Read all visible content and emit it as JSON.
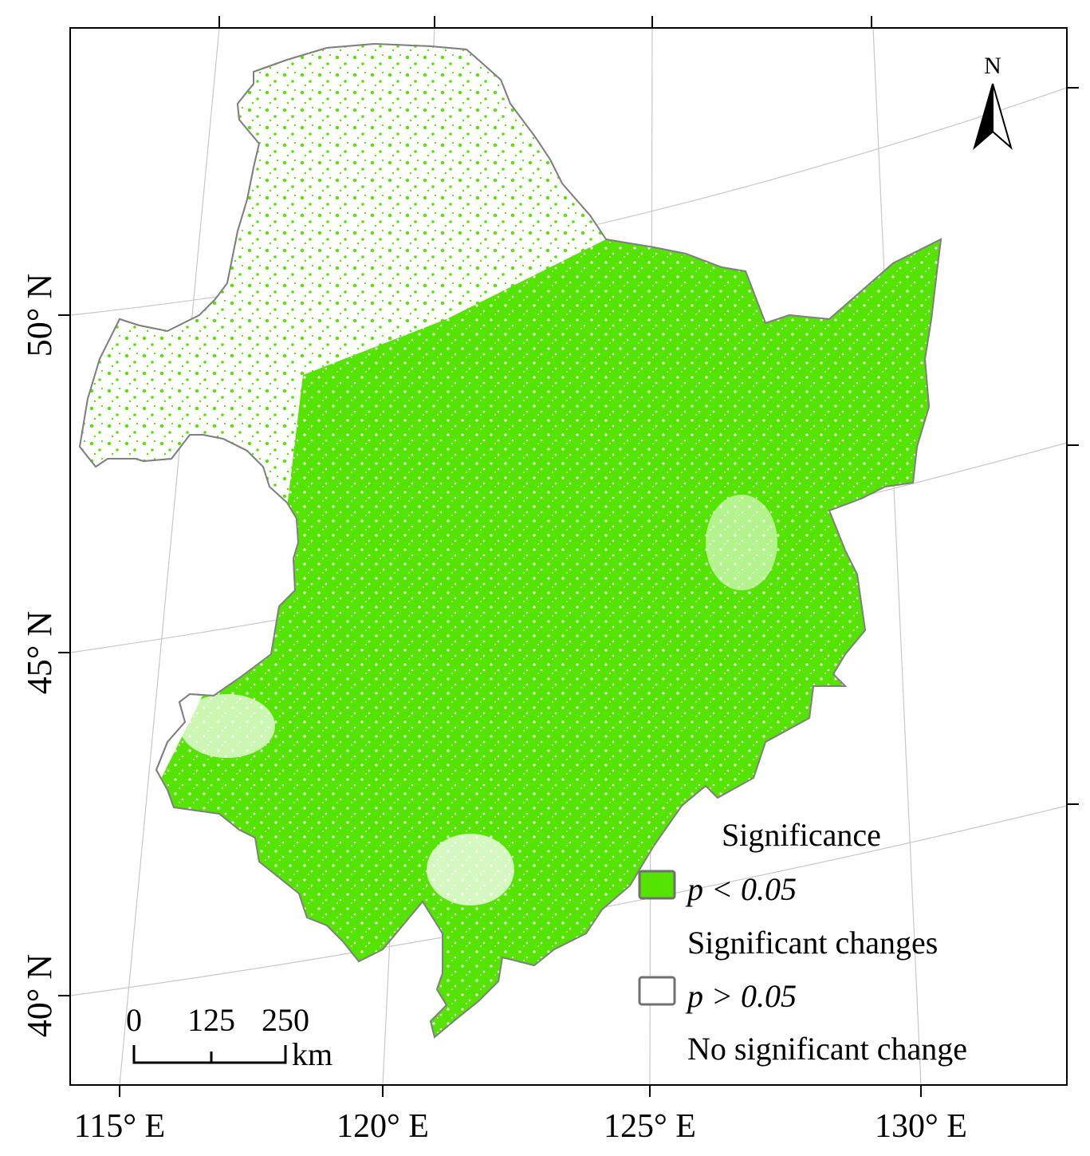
{
  "map": {
    "graticule": {
      "latitudes": [
        "50° N",
        "45° N",
        "40° N"
      ],
      "longitudes": [
        "115° E",
        "120° E",
        "125° E",
        "130° E"
      ]
    },
    "north_arrow": {
      "label": "N"
    },
    "scale_bar": {
      "ticks": [
        "0",
        "125",
        "250"
      ],
      "unit": "km"
    },
    "legend": {
      "title": "Significance",
      "items": [
        {
          "symbol_label": "p < 0.05",
          "description": "Significant changes",
          "color": "#55E400"
        },
        {
          "symbol_label": "p > 0.05",
          "description": "No significant change",
          "color": "#FFFFFF"
        }
      ]
    },
    "colors": {
      "significant": "#55E400",
      "not_significant": "#FFFFFF",
      "boundary": "#808080",
      "graticule": "#C8C8C8",
      "frame": "#000000"
    }
  }
}
